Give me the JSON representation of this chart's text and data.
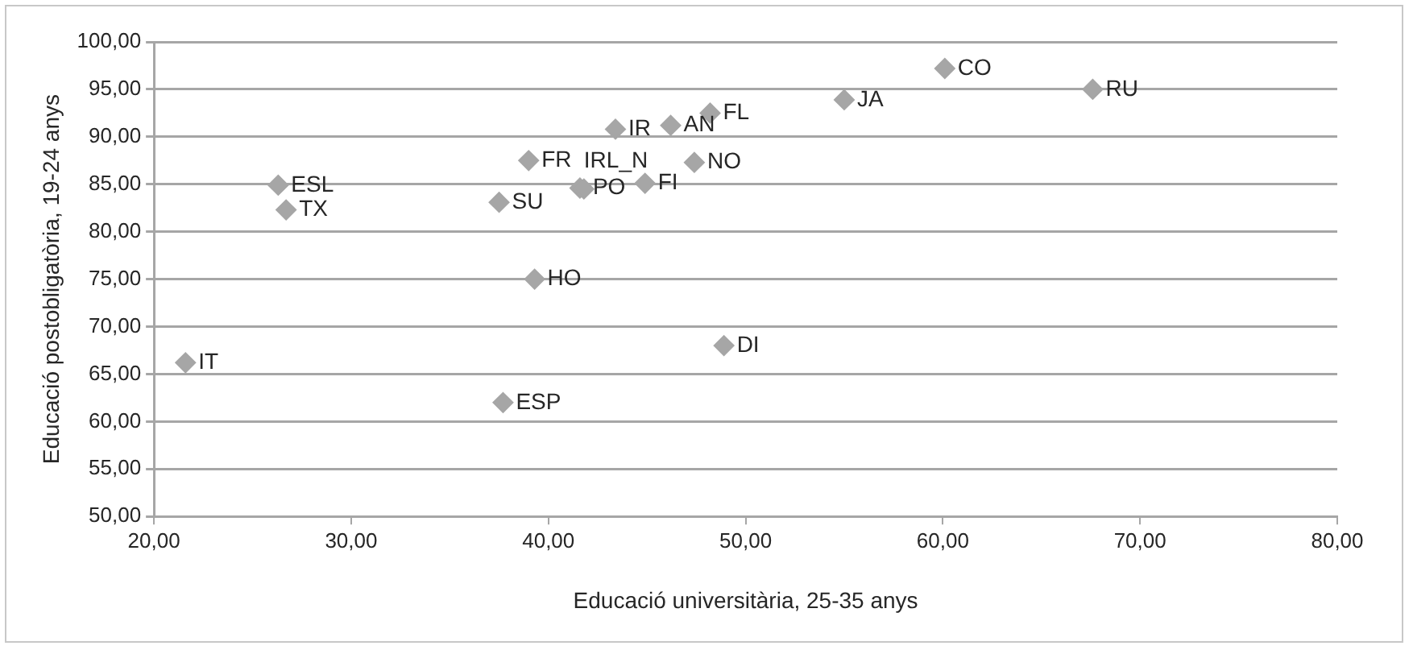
{
  "chart_data": {
    "type": "scatter",
    "xlabel": "Educació universitària, 25-35 anys",
    "ylabel": "Educació postobligatòria, 19-24 anys",
    "series": [
      {
        "color": "#a6a6a6",
        "x": [
          21.6,
          26.3,
          26.7,
          37.5,
          39.0,
          39.3,
          37.7,
          41.6,
          43.4,
          46.2,
          48.2,
          47.4,
          44.9,
          48.9,
          55.0,
          60.1,
          67.6,
          41.8
        ],
        "values": [
          66.2,
          84.9,
          82.3,
          83.1,
          87.5,
          75.0,
          62.0,
          84.6,
          90.8,
          91.2,
          92.5,
          87.3,
          85.1,
          68.0,
          93.9,
          97.2,
          95.0,
          84.5
        ]
      }
    ],
    "annotations": [
      {
        "text": "IT",
        "x": 21.6,
        "y": 66.2
      },
      {
        "text": "ESL",
        "x": 26.3,
        "y": 84.9
      },
      {
        "text": "TX",
        "x": 26.7,
        "y": 82.3
      },
      {
        "text": "SU",
        "x": 37.5,
        "y": 83.1
      },
      {
        "text": "FR",
        "x": 39.0,
        "y": 87.5
      },
      {
        "text": "HO",
        "x": 39.3,
        "y": 75.0
      },
      {
        "text": "ESP",
        "x": 37.7,
        "y": 62.0
      },
      {
        "text": "PO",
        "x": 41.6,
        "y": 84.6
      },
      {
        "text": "IR",
        "x": 43.4,
        "y": 90.8
      },
      {
        "text": "AN",
        "x": 46.2,
        "y": 91.2
      },
      {
        "text": "FL",
        "x": 48.2,
        "y": 92.5
      },
      {
        "text": "NO",
        "x": 47.4,
        "y": 87.3
      },
      {
        "text": "FI",
        "x": 44.9,
        "y": 85.1
      },
      {
        "text": "DI",
        "x": 48.9,
        "y": 68.0
      },
      {
        "text": "JA",
        "x": 55.0,
        "y": 93.9
      },
      {
        "text": "CO",
        "x": 60.1,
        "y": 97.2
      },
      {
        "text": "RU",
        "x": 67.6,
        "y": 95.0
      },
      {
        "text": "IRL_N",
        "x": 41.8,
        "y": 84.5
      }
    ],
    "xlim": [
      20,
      80
    ],
    "xticks": [
      {
        "value": 20,
        "label": "20,00"
      },
      {
        "value": 30,
        "label": "30,00"
      },
      {
        "value": 40,
        "label": "40,00"
      },
      {
        "value": 50,
        "label": "50,00"
      },
      {
        "value": 60,
        "label": "60,00"
      },
      {
        "value": 70,
        "label": "70,00"
      },
      {
        "value": 80,
        "label": "80,00"
      }
    ],
    "ylim": [
      50,
      100
    ],
    "yticks": [
      {
        "value": 50,
        "label": "50,00"
      },
      {
        "value": 55,
        "label": "55,00"
      },
      {
        "value": 60,
        "label": "60,00"
      },
      {
        "value": 65,
        "label": "65,00"
      },
      {
        "value": 70,
        "label": "70,00"
      },
      {
        "value": 75,
        "label": "75,00"
      },
      {
        "value": 80,
        "label": "80,00"
      },
      {
        "value": 85,
        "label": "85,00"
      },
      {
        "value": 90,
        "label": "90,00"
      },
      {
        "value": 95,
        "label": "95,00"
      },
      {
        "value": 100,
        "label": "100,00"
      }
    ],
    "grid": "y",
    "marker": "diamond",
    "legend": false
  }
}
